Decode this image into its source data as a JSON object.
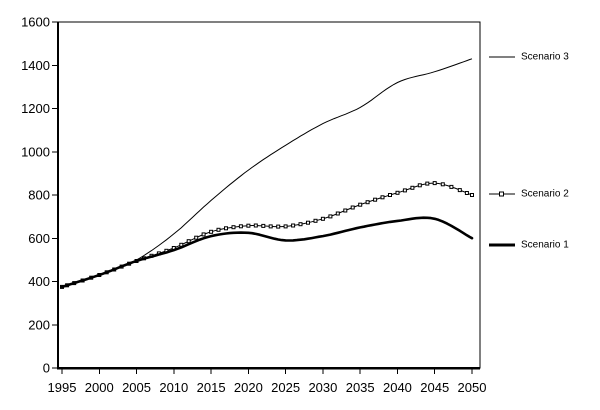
{
  "chart_data": {
    "type": "line",
    "title": "",
    "xlabel": "",
    "ylabel": "",
    "x": [
      1995,
      2000,
      2005,
      2010,
      2015,
      2020,
      2025,
      2030,
      2035,
      2040,
      2045,
      2050
    ],
    "series": [
      {
        "name": "Scenario 1",
        "values": [
          375,
          430,
          495,
          545,
          610,
          625,
          590,
          610,
          650,
          680,
          690,
          600
        ],
        "line_style": "thick-solid",
        "marker": "none"
      },
      {
        "name": "Scenario 2",
        "values": [
          375,
          430,
          495,
          555,
          630,
          658,
          655,
          690,
          755,
          810,
          855,
          800
        ],
        "line_style": "thin-solid",
        "marker": "small-square"
      },
      {
        "name": "Scenario 3",
        "values": [
          375,
          430,
          500,
          620,
          775,
          915,
          1030,
          1130,
          1205,
          1320,
          1370,
          1430
        ],
        "line_style": "thin-solid",
        "marker": "none"
      }
    ],
    "xticks": [
      1995,
      2000,
      2005,
      2010,
      2015,
      2020,
      2025,
      2030,
      2035,
      2040,
      2045,
      2050
    ],
    "yticks": [
      0,
      200,
      400,
      600,
      800,
      1000,
      1200,
      1400,
      1600
    ],
    "ylim": [
      0,
      1600
    ],
    "xlim": [
      1995,
      2050
    ],
    "grid": false,
    "legend_position": "right-outside",
    "legend_order": [
      "Scenario 3",
      "Scenario 2",
      "Scenario 1"
    ],
    "colors": {
      "line": "#000000",
      "text": "#000000",
      "background": "#ffffff",
      "marker_fill": "#ffffff"
    }
  }
}
